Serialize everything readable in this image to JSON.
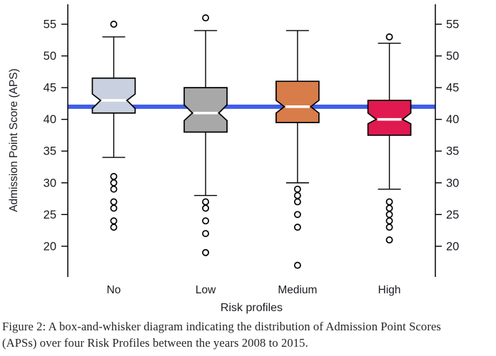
{
  "figure": {
    "caption_line1": "Figure 2: A box-and-whisker diagram indicating the distribution of Admission Point Scores",
    "caption_line2": "(APSs) over four Risk Profiles between the years 2008 to 2015."
  },
  "chart_data": {
    "type": "boxplot",
    "title": "",
    "xlabel": "Risk profiles",
    "ylabel": "Admission Point Score (APS)",
    "ylim": [
      16,
      58
    ],
    "yticks": [
      20,
      25,
      30,
      35,
      40,
      45,
      50,
      55
    ],
    "grid": false,
    "dual_y_axis": true,
    "bottom_axis_line": false,
    "text_color": "#1b1b22",
    "reference_line": {
      "value": 42,
      "color": "#3f5de8",
      "thickness_px": 6
    },
    "categories": [
      "No",
      "Low",
      "Medium",
      "High"
    ],
    "boxes": [
      {
        "category": "No",
        "fill_color": "#c9d1e0",
        "whisker_high": 53,
        "q3": 46.5,
        "notch_high": 44.0,
        "median": 43,
        "notch_low": 41.7,
        "q1": 41,
        "whisker_low": 34,
        "outliers_above": [
          55
        ],
        "outliers_below": [
          31,
          30,
          29,
          27,
          26,
          24,
          23
        ]
      },
      {
        "category": "Low",
        "fill_color": "#a8a8a8",
        "whisker_high": 54,
        "q3": 45,
        "notch_high": 42.3,
        "median": 41,
        "notch_low": 39.8,
        "q1": 38,
        "whisker_low": 28,
        "outliers_above": [
          56
        ],
        "outliers_below": [
          27,
          26,
          24,
          22,
          19
        ]
      },
      {
        "category": "Medium",
        "fill_color": "#d87c4a",
        "whisker_high": 54,
        "q3": 46,
        "notch_high": 43.0,
        "median": 42,
        "notch_low": 41.0,
        "q1": 39.5,
        "whisker_low": 30,
        "outliers_above": [],
        "outliers_below": [
          29,
          28,
          27,
          25,
          23,
          17
        ]
      },
      {
        "category": "High",
        "fill_color": "#e01950",
        "whisker_high": 52,
        "q3": 43,
        "notch_high": 41.0,
        "median": 40,
        "notch_low": 39.3,
        "q1": 37.5,
        "whisker_low": 29,
        "outliers_above": [
          53
        ],
        "outliers_below": [
          27,
          26,
          25,
          24,
          23,
          21
        ]
      }
    ]
  }
}
